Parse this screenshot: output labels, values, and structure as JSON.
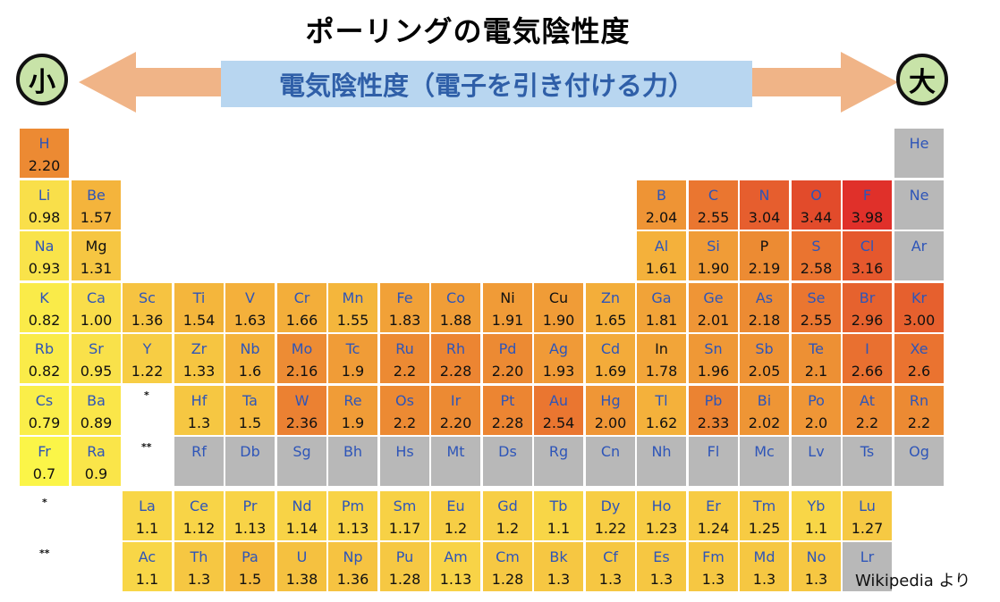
{
  "title": "ポーリングの電気陰性度",
  "scale": {
    "label": "電気陰性度（電子を引き付ける力）",
    "low_label": "小",
    "high_label": "大",
    "arrow_color": "#f0b487",
    "label_bg": "#b8d6f0"
  },
  "credit": "Wikipedia より",
  "markers": {
    "lanthanoid": "*",
    "actinoid": "**"
  },
  "colors": {
    "no_data": "#b8b8b8",
    "scale": [
      {
        "at": 0.7,
        "color": "#fbf548"
      },
      {
        "at": 1.0,
        "color": "#f9dd4a"
      },
      {
        "at": 1.3,
        "color": "#f6c742"
      },
      {
        "at": 1.6,
        "color": "#f4b23b"
      },
      {
        "at": 1.9,
        "color": "#f09c37"
      },
      {
        "at": 2.2,
        "color": "#ec8a33"
      },
      {
        "at": 2.6,
        "color": "#ea7330"
      },
      {
        "at": 3.0,
        "color": "#e6602e"
      },
      {
        "at": 3.44,
        "color": "#e24b2b"
      },
      {
        "at": 3.98,
        "color": "#e0302a"
      }
    ]
  },
  "chart_data": {
    "type": "heatmap",
    "title": "ポーリングの電気陰性度",
    "value_label": "電気陰性度（電子を引き付ける力）",
    "elements": [
      {
        "symbol": "H",
        "value": "2.20",
        "period": 1,
        "group": 1
      },
      {
        "symbol": "He",
        "value": "",
        "period": 1,
        "group": 18
      },
      {
        "symbol": "Li",
        "value": "0.98",
        "period": 2,
        "group": 1
      },
      {
        "symbol": "Be",
        "value": "1.57",
        "period": 2,
        "group": 2
      },
      {
        "symbol": "B",
        "value": "2.04",
        "period": 2,
        "group": 13
      },
      {
        "symbol": "C",
        "value": "2.55",
        "period": 2,
        "group": 14
      },
      {
        "symbol": "N",
        "value": "3.04",
        "period": 2,
        "group": 15
      },
      {
        "symbol": "O",
        "value": "3.44",
        "period": 2,
        "group": 16
      },
      {
        "symbol": "F",
        "value": "3.98",
        "period": 2,
        "group": 17
      },
      {
        "symbol": "Ne",
        "value": "",
        "period": 2,
        "group": 18
      },
      {
        "symbol": "Na",
        "value": "0.93",
        "period": 3,
        "group": 1
      },
      {
        "symbol": "Mg",
        "value": "1.31",
        "period": 3,
        "group": 2,
        "dark": true
      },
      {
        "symbol": "Al",
        "value": "1.61",
        "period": 3,
        "group": 13
      },
      {
        "symbol": "Si",
        "value": "1.90",
        "period": 3,
        "group": 14
      },
      {
        "symbol": "P",
        "value": "2.19",
        "period": 3,
        "group": 15,
        "dark": true
      },
      {
        "symbol": "S",
        "value": "2.58",
        "period": 3,
        "group": 16
      },
      {
        "symbol": "Cl",
        "value": "3.16",
        "period": 3,
        "group": 17
      },
      {
        "symbol": "Ar",
        "value": "",
        "period": 3,
        "group": 18
      },
      {
        "symbol": "K",
        "value": "0.82",
        "period": 4,
        "group": 1
      },
      {
        "symbol": "Ca",
        "value": "1.00",
        "period": 4,
        "group": 2
      },
      {
        "symbol": "Sc",
        "value": "1.36",
        "period": 4,
        "group": 3
      },
      {
        "symbol": "Ti",
        "value": "1.54",
        "period": 4,
        "group": 4
      },
      {
        "symbol": "V",
        "value": "1.63",
        "period": 4,
        "group": 5
      },
      {
        "symbol": "Cr",
        "value": "1.66",
        "period": 4,
        "group": 6
      },
      {
        "symbol": "Mn",
        "value": "1.55",
        "period": 4,
        "group": 7
      },
      {
        "symbol": "Fe",
        "value": "1.83",
        "period": 4,
        "group": 8
      },
      {
        "symbol": "Co",
        "value": "1.88",
        "period": 4,
        "group": 9
      },
      {
        "symbol": "Ni",
        "value": "1.91",
        "period": 4,
        "group": 10,
        "dark": true
      },
      {
        "symbol": "Cu",
        "value": "1.90",
        "period": 4,
        "group": 11,
        "dark": true
      },
      {
        "symbol": "Zn",
        "value": "1.65",
        "period": 4,
        "group": 12
      },
      {
        "symbol": "Ga",
        "value": "1.81",
        "period": 4,
        "group": 13
      },
      {
        "symbol": "Ge",
        "value": "2.01",
        "period": 4,
        "group": 14
      },
      {
        "symbol": "As",
        "value": "2.18",
        "period": 4,
        "group": 15
      },
      {
        "symbol": "Se",
        "value": "2.55",
        "period": 4,
        "group": 16
      },
      {
        "symbol": "Br",
        "value": "2.96",
        "period": 4,
        "group": 17
      },
      {
        "symbol": "Kr",
        "value": "3.00",
        "period": 4,
        "group": 18
      },
      {
        "symbol": "Rb",
        "value": "0.82",
        "period": 5,
        "group": 1
      },
      {
        "symbol": "Sr",
        "value": "0.95",
        "period": 5,
        "group": 2
      },
      {
        "symbol": "Y",
        "value": "1.22",
        "period": 5,
        "group": 3
      },
      {
        "symbol": "Zr",
        "value": "1.33",
        "period": 5,
        "group": 4
      },
      {
        "symbol": "Nb",
        "value": "1.6",
        "period": 5,
        "group": 5
      },
      {
        "symbol": "Mo",
        "value": "2.16",
        "period": 5,
        "group": 6
      },
      {
        "symbol": "Tc",
        "value": "1.9",
        "period": 5,
        "group": 7
      },
      {
        "symbol": "Ru",
        "value": "2.2",
        "period": 5,
        "group": 8
      },
      {
        "symbol": "Rh",
        "value": "2.28",
        "period": 5,
        "group": 9
      },
      {
        "symbol": "Pd",
        "value": "2.20",
        "period": 5,
        "group": 10
      },
      {
        "symbol": "Ag",
        "value": "1.93",
        "period": 5,
        "group": 11
      },
      {
        "symbol": "Cd",
        "value": "1.69",
        "period": 5,
        "group": 12
      },
      {
        "symbol": "In",
        "value": "1.78",
        "period": 5,
        "group": 13,
        "dark": true
      },
      {
        "symbol": "Sn",
        "value": "1.96",
        "period": 5,
        "group": 14
      },
      {
        "symbol": "Sb",
        "value": "2.05",
        "period": 5,
        "group": 15
      },
      {
        "symbol": "Te",
        "value": "2.1",
        "period": 5,
        "group": 16
      },
      {
        "symbol": "I",
        "value": "2.66",
        "period": 5,
        "group": 17
      },
      {
        "symbol": "Xe",
        "value": "2.6",
        "period": 5,
        "group": 18
      },
      {
        "symbol": "Cs",
        "value": "0.79",
        "period": 6,
        "group": 1
      },
      {
        "symbol": "Ba",
        "value": "0.89",
        "period": 6,
        "group": 2
      },
      {
        "symbol": "Hf",
        "value": "1.3",
        "period": 6,
        "group": 4
      },
      {
        "symbol": "Ta",
        "value": "1.5",
        "period": 6,
        "group": 5
      },
      {
        "symbol": "W",
        "value": "2.36",
        "period": 6,
        "group": 6
      },
      {
        "symbol": "Re",
        "value": "1.9",
        "period": 6,
        "group": 7
      },
      {
        "symbol": "Os",
        "value": "2.2",
        "period": 6,
        "group": 8
      },
      {
        "symbol": "Ir",
        "value": "2.20",
        "period": 6,
        "group": 9
      },
      {
        "symbol": "Pt",
        "value": "2.28",
        "period": 6,
        "group": 10
      },
      {
        "symbol": "Au",
        "value": "2.54",
        "period": 6,
        "group": 11
      },
      {
        "symbol": "Hg",
        "value": "2.00",
        "period": 6,
        "group": 12
      },
      {
        "symbol": "Tl",
        "value": "1.62",
        "period": 6,
        "group": 13
      },
      {
        "symbol": "Pb",
        "value": "2.33",
        "period": 6,
        "group": 14
      },
      {
        "symbol": "Bi",
        "value": "2.02",
        "period": 6,
        "group": 15
      },
      {
        "symbol": "Po",
        "value": "2.0",
        "period": 6,
        "group": 16
      },
      {
        "symbol": "At",
        "value": "2.2",
        "period": 6,
        "group": 17
      },
      {
        "symbol": "Rn",
        "value": "2.2",
        "period": 6,
        "group": 18
      },
      {
        "symbol": "Fr",
        "value": "0.7",
        "period": 7,
        "group": 1
      },
      {
        "symbol": "Ra",
        "value": "0.9",
        "period": 7,
        "group": 2
      },
      {
        "symbol": "Rf",
        "value": "",
        "period": 7,
        "group": 4
      },
      {
        "symbol": "Db",
        "value": "",
        "period": 7,
        "group": 5
      },
      {
        "symbol": "Sg",
        "value": "",
        "period": 7,
        "group": 6
      },
      {
        "symbol": "Bh",
        "value": "",
        "period": 7,
        "group": 7
      },
      {
        "symbol": "Hs",
        "value": "",
        "period": 7,
        "group": 8
      },
      {
        "symbol": "Mt",
        "value": "",
        "period": 7,
        "group": 9
      },
      {
        "symbol": "Ds",
        "value": "",
        "period": 7,
        "group": 10
      },
      {
        "symbol": "Rg",
        "value": "",
        "period": 7,
        "group": 11
      },
      {
        "symbol": "Cn",
        "value": "",
        "period": 7,
        "group": 12
      },
      {
        "symbol": "Nh",
        "value": "",
        "period": 7,
        "group": 13
      },
      {
        "symbol": "Fl",
        "value": "",
        "period": 7,
        "group": 14
      },
      {
        "symbol": "Mc",
        "value": "",
        "period": 7,
        "group": 15
      },
      {
        "symbol": "Lv",
        "value": "",
        "period": 7,
        "group": 16
      },
      {
        "symbol": "Ts",
        "value": "",
        "period": 7,
        "group": 17
      },
      {
        "symbol": "Og",
        "value": "",
        "period": 7,
        "group": 18
      },
      {
        "symbol": "La",
        "value": "1.1",
        "series": "lanthanoid",
        "index": 1
      },
      {
        "symbol": "Ce",
        "value": "1.12",
        "series": "lanthanoid",
        "index": 2
      },
      {
        "symbol": "Pr",
        "value": "1.13",
        "series": "lanthanoid",
        "index": 3
      },
      {
        "symbol": "Nd",
        "value": "1.14",
        "series": "lanthanoid",
        "index": 4
      },
      {
        "symbol": "Pm",
        "value": "1.13",
        "series": "lanthanoid",
        "index": 5
      },
      {
        "symbol": "Sm",
        "value": "1.17",
        "series": "lanthanoid",
        "index": 6
      },
      {
        "symbol": "Eu",
        "value": "1.2",
        "series": "lanthanoid",
        "index": 7
      },
      {
        "symbol": "Gd",
        "value": "1.2",
        "series": "lanthanoid",
        "index": 8
      },
      {
        "symbol": "Tb",
        "value": "1.1",
        "series": "lanthanoid",
        "index": 9
      },
      {
        "symbol": "Dy",
        "value": "1.22",
        "series": "lanthanoid",
        "index": 10
      },
      {
        "symbol": "Ho",
        "value": "1.23",
        "series": "lanthanoid",
        "index": 11
      },
      {
        "symbol": "Er",
        "value": "1.24",
        "series": "lanthanoid",
        "index": 12
      },
      {
        "symbol": "Tm",
        "value": "1.25",
        "series": "lanthanoid",
        "index": 13
      },
      {
        "symbol": "Yb",
        "value": "1.1",
        "series": "lanthanoid",
        "index": 14
      },
      {
        "symbol": "Lu",
        "value": "1.27",
        "series": "lanthanoid",
        "index": 15
      },
      {
        "symbol": "Ac",
        "value": "1.1",
        "series": "actinoid",
        "index": 1
      },
      {
        "symbol": "Th",
        "value": "1.3",
        "series": "actinoid",
        "index": 2
      },
      {
        "symbol": "Pa",
        "value": "1.5",
        "series": "actinoid",
        "index": 3
      },
      {
        "symbol": "U",
        "value": "1.38",
        "series": "actinoid",
        "index": 4
      },
      {
        "symbol": "Np",
        "value": "1.36",
        "series": "actinoid",
        "index": 5
      },
      {
        "symbol": "Pu",
        "value": "1.28",
        "series": "actinoid",
        "index": 6
      },
      {
        "symbol": "Am",
        "value": "1.13",
        "series": "actinoid",
        "index": 7
      },
      {
        "symbol": "Cm",
        "value": "1.28",
        "series": "actinoid",
        "index": 8
      },
      {
        "symbol": "Bk",
        "value": "1.3",
        "series": "actinoid",
        "index": 9
      },
      {
        "symbol": "Cf",
        "value": "1.3",
        "series": "actinoid",
        "index": 10
      },
      {
        "symbol": "Es",
        "value": "1.3",
        "series": "actinoid",
        "index": 11
      },
      {
        "symbol": "Fm",
        "value": "1.3",
        "series": "actinoid",
        "index": 12
      },
      {
        "symbol": "Md",
        "value": "1.3",
        "series": "actinoid",
        "index": 13
      },
      {
        "symbol": "No",
        "value": "1.3",
        "series": "actinoid",
        "index": 14
      },
      {
        "symbol": "Lr",
        "value": "",
        "series": "actinoid",
        "index": 15
      }
    ]
  }
}
